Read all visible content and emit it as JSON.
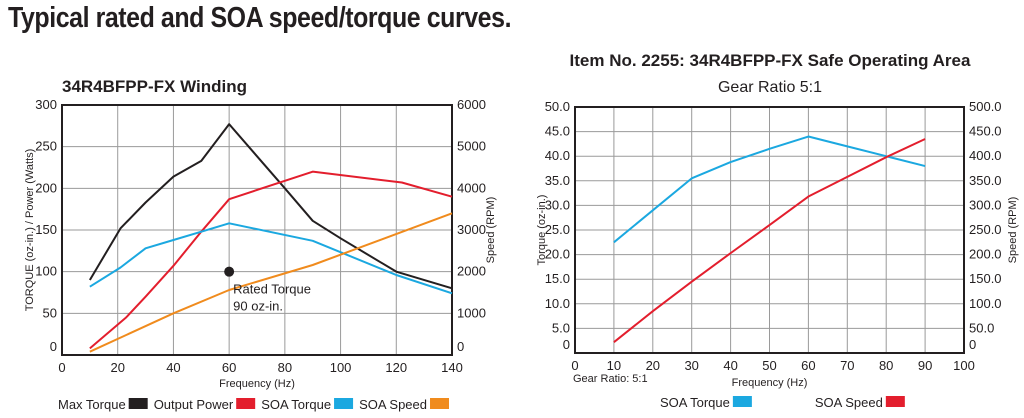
{
  "page_title": "Typical rated and SOA speed/torque curves.",
  "chart_data": [
    {
      "type": "line",
      "title": "34R4BFPP-FX Winding",
      "xlabel": "Frequency (Hz)",
      "ylabel": "TORQUE (oz-in.) / Power (Watts)",
      "y2label": "Speed (RPM)",
      "xlim": [
        0,
        140
      ],
      "ylim": [
        0,
        300
      ],
      "y2lim": [
        0,
        6000
      ],
      "xticks": [
        0,
        20,
        40,
        60,
        80,
        100,
        120,
        140
      ],
      "yticks": [
        0,
        50,
        100,
        150,
        200,
        250,
        300
      ],
      "y2ticks": [
        0,
        1000,
        2000,
        3000,
        4000,
        5000,
        6000
      ],
      "grid": true,
      "legend": "bottom",
      "series": [
        {
          "name": "Max Torque",
          "color": "#231f20",
          "axis": "left",
          "x": [
            10,
            21,
            30,
            40,
            50,
            60,
            80,
            90,
            100,
            120,
            140
          ],
          "y": [
            90,
            152,
            183,
            214,
            233,
            277,
            200,
            161,
            140,
            100,
            80
          ]
        },
        {
          "name": "Output Power",
          "color": "#e31e2d",
          "axis": "left",
          "x": [
            10,
            23,
            30,
            40,
            50,
            60,
            90,
            122,
            140
          ],
          "y": [
            8,
            45,
            70,
            107,
            148,
            187,
            220,
            207,
            190
          ]
        },
        {
          "name": "SOA Torque",
          "color": "#1ba8e0",
          "axis": "left",
          "x": [
            10,
            21,
            30,
            40,
            50,
            60,
            90,
            120,
            140
          ],
          "y": [
            82,
            105,
            128,
            138,
            148,
            158,
            137,
            96,
            74
          ]
        },
        {
          "name": "SOA Speed",
          "color": "#f08b1d",
          "axis": "right",
          "x": [
            10,
            40,
            60,
            90,
            140
          ],
          "y": [
            80,
            1000,
            1560,
            2160,
            3400
          ]
        }
      ],
      "annotation": {
        "x": 60,
        "y": 100,
        "line1": "Rated Torque",
        "line2": "90 oz-in."
      }
    },
    {
      "type": "line",
      "title": "Item No. 2255: 34R4BFPP-FX Safe Operating Area",
      "subtitle": "Gear Ratio 5:1",
      "xlabel": "Frequency (Hz)",
      "xnote": "Gear Ratio: 5:1",
      "ylabel": "Torque (oz-in.)",
      "y2label": "Speed (RPM)",
      "xlim": [
        0,
        100
      ],
      "ylim": [
        0,
        50
      ],
      "y2lim": [
        0,
        500
      ],
      "xticks": [
        0,
        10,
        20,
        30,
        40,
        50,
        60,
        70,
        80,
        90,
        100
      ],
      "yticks": [
        "0",
        "5.0",
        "10.0",
        "15.0",
        "20.0",
        "25.0",
        "30.0",
        "35.0",
        "40.0",
        "45.0",
        "50.0"
      ],
      "y2ticks": [
        "0",
        "50.0",
        "100.0",
        "150.0",
        "200.0",
        "250.0",
        "300.0",
        "350.0",
        "400.0",
        "450.0",
        "500.0"
      ],
      "grid": true,
      "legend": "bottom",
      "series": [
        {
          "name": "SOA Torque",
          "color": "#1ba8e0",
          "axis": "left",
          "x": [
            10,
            20,
            30,
            40,
            50,
            60,
            70,
            80,
            90
          ],
          "y": [
            22.5,
            29,
            35.5,
            38.8,
            41.5,
            44,
            42,
            40,
            38
          ]
        },
        {
          "name": "SOA Speed",
          "color": "#e31e2d",
          "axis": "right",
          "x": [
            10,
            20,
            30,
            40,
            50,
            60,
            70,
            80,
            90
          ],
          "y": [
            22,
            85,
            145,
            203,
            260,
            318,
            358,
            398,
            435
          ]
        }
      ]
    }
  ]
}
